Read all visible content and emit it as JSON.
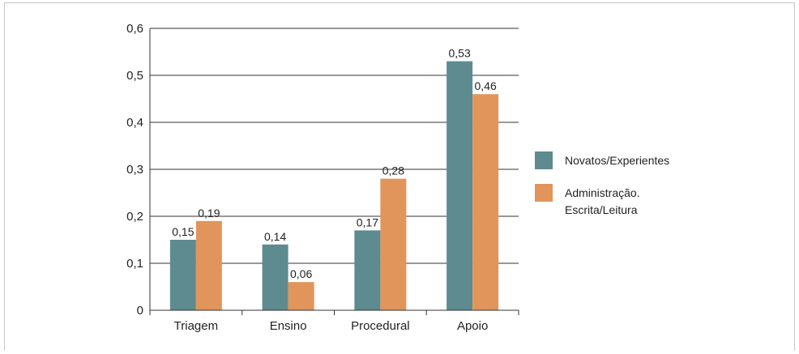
{
  "chart_data": {
    "type": "bar",
    "categories": [
      "Triagem",
      "Ensino",
      "Procedural",
      "Apoio"
    ],
    "series": [
      {
        "name": "Novatos/Experientes",
        "values": [
          0.15,
          0.14,
          0.17,
          0.53
        ],
        "labels": [
          "0,15",
          "0,14",
          "0,17",
          "0,53"
        ],
        "color": "#5e8b8f"
      },
      {
        "name": "Administração. Escrita/Leitura",
        "values": [
          0.19,
          0.06,
          0.28,
          0.46
        ],
        "labels": [
          "0,19",
          "0,06",
          "0,28",
          "0,46"
        ],
        "color": "#e1955b"
      }
    ],
    "legend_lines": [
      [
        "Novatos/Experientes"
      ],
      [
        "Administração.",
        "Escrita/Leitura"
      ]
    ],
    "ylim": [
      0,
      0.6
    ],
    "yticks": [
      0,
      0.1,
      0.2,
      0.3,
      0.4,
      0.5,
      0.6
    ],
    "ytick_labels": [
      "0",
      "0,1",
      "0,2",
      "0,3",
      "0,4",
      "0,5",
      "0,6"
    ],
    "grid": true,
    "legend_position": "right",
    "title": "",
    "xlabel": "",
    "ylabel": ""
  }
}
